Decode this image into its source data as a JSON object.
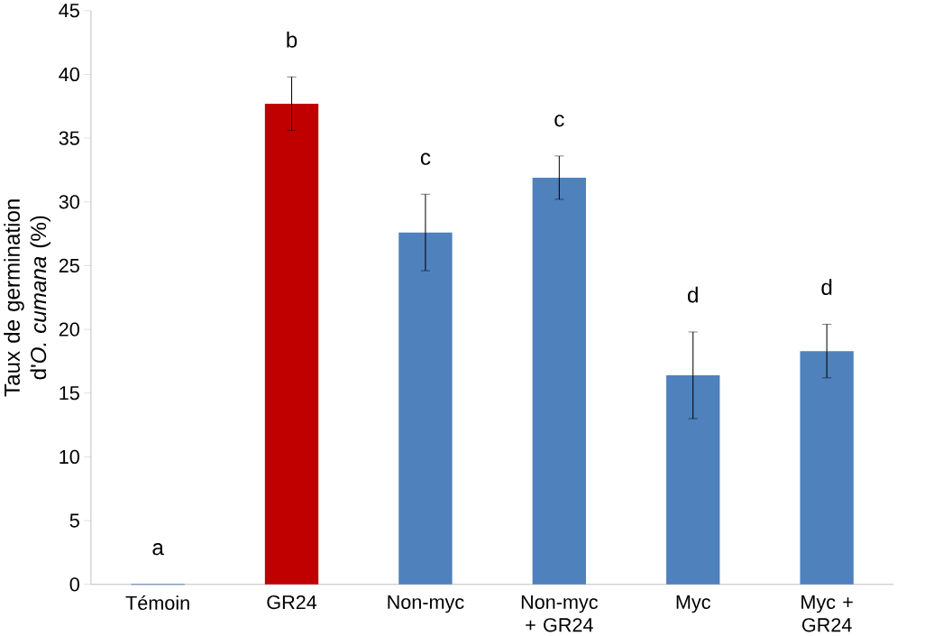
{
  "chart_data": {
    "type": "bar",
    "ylabel": "Taux de germination d'*O. cumana* (%)",
    "categories": [
      "Témoin",
      "GR24",
      "Non-myc",
      "Non-myc + GR24",
      "Myc",
      "Myc + GR24"
    ],
    "values": [
      0,
      37.7,
      27.6,
      31.9,
      16.4,
      18.3
    ],
    "errors": [
      null,
      2.1,
      3.0,
      1.7,
      3.4,
      2.1
    ],
    "colors": [
      "#4f81bd",
      "#c00000",
      "#4f81bd",
      "#4f81bd",
      "#4f81bd",
      "#4f81bd"
    ],
    "ylim": [
      0,
      45
    ],
    "yticks": [
      0,
      5,
      10,
      15,
      20,
      25,
      30,
      35,
      40,
      45
    ],
    "grid": false,
    "annotations": [
      "a",
      "b",
      "c",
      "c",
      "d",
      "d"
    ]
  }
}
